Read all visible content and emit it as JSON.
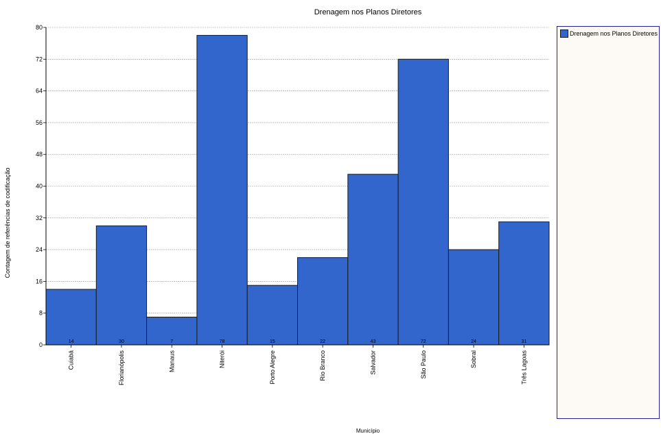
{
  "chart_data": {
    "type": "bar",
    "title": "Drenagem nos Planos Diretores",
    "xlabel": "Município",
    "ylabel": "Contagem de referências de codificação",
    "categories": [
      "Cuiabá",
      "Florianópolis",
      "Manaus",
      "Niterói",
      "Porto Alegre",
      "Rio Branco",
      "Salvador",
      "São Paulo",
      "Sobral",
      "Três Lagoas"
    ],
    "series": [
      {
        "name": "Drenagem nos Planos Diretores",
        "values": [
          14,
          30,
          7,
          78,
          15,
          22,
          43,
          72,
          24,
          31
        ]
      }
    ],
    "ylim": [
      0,
      80
    ],
    "yticks": [
      0,
      8,
      16,
      24,
      32,
      40,
      48,
      56,
      64,
      72,
      80
    ],
    "grid": true,
    "legend": "right",
    "colors": {
      "bar": "#3366cc",
      "bar_edge": "#1a1a1a",
      "grid": "#9a9a9a",
      "legend_border": "#1f1f9e"
    }
  }
}
